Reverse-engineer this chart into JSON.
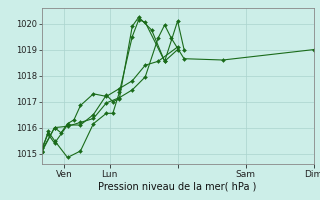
{
  "background_color": "#cceee8",
  "grid_color": "#aad4ce",
  "line_color": "#1a6b1a",
  "xlabel": "Pression niveau de la mer( hPa )",
  "ylim": [
    1014.6,
    1020.6
  ],
  "yticks": [
    1015,
    1016,
    1017,
    1018,
    1019,
    1020
  ],
  "xlim": [
    0,
    84
  ],
  "xtick_positions": [
    7,
    21,
    42,
    63,
    84
  ],
  "xtick_labels": [
    "Ven",
    "Lun",
    "",
    "Sam",
    "Dim"
  ],
  "series_x": [
    [
      0,
      4,
      6,
      8,
      10,
      12,
      16,
      20,
      24,
      28,
      32,
      36,
      42
    ],
    [
      0,
      2,
      4,
      8,
      12,
      16,
      20,
      22,
      24,
      28,
      30,
      34,
      38,
      42
    ],
    [
      0,
      2,
      4,
      8,
      12,
      16,
      20,
      22,
      24,
      28,
      30,
      32,
      38,
      42,
      44
    ],
    [
      0,
      4,
      8,
      12,
      16,
      20,
      24,
      28,
      32,
      36,
      38,
      40,
      44,
      56,
      84
    ]
  ],
  "series_y": [
    [
      1015.1,
      1016.0,
      1015.8,
      1016.15,
      1016.3,
      1016.85,
      1017.3,
      1017.2,
      1017.5,
      1017.8,
      1018.4,
      1018.55,
      1019.1
    ],
    [
      1015.2,
      1015.75,
      1015.4,
      1016.1,
      1016.1,
      1016.5,
      1017.25,
      1017.0,
      1017.1,
      1019.9,
      1020.25,
      1019.75,
      1018.55,
      1019.0
    ],
    [
      1015.05,
      1015.85,
      1015.5,
      1014.85,
      1015.1,
      1016.15,
      1016.55,
      1016.55,
      1017.35,
      1019.5,
      1020.15,
      1020.05,
      1018.55,
      1020.1,
      1019.0
    ],
    [
      1015.05,
      1016.0,
      1016.05,
      1016.2,
      1016.35,
      1016.95,
      1017.15,
      1017.45,
      1017.95,
      1019.45,
      1019.95,
      1019.45,
      1018.65,
      1018.6,
      1019.0
    ]
  ]
}
